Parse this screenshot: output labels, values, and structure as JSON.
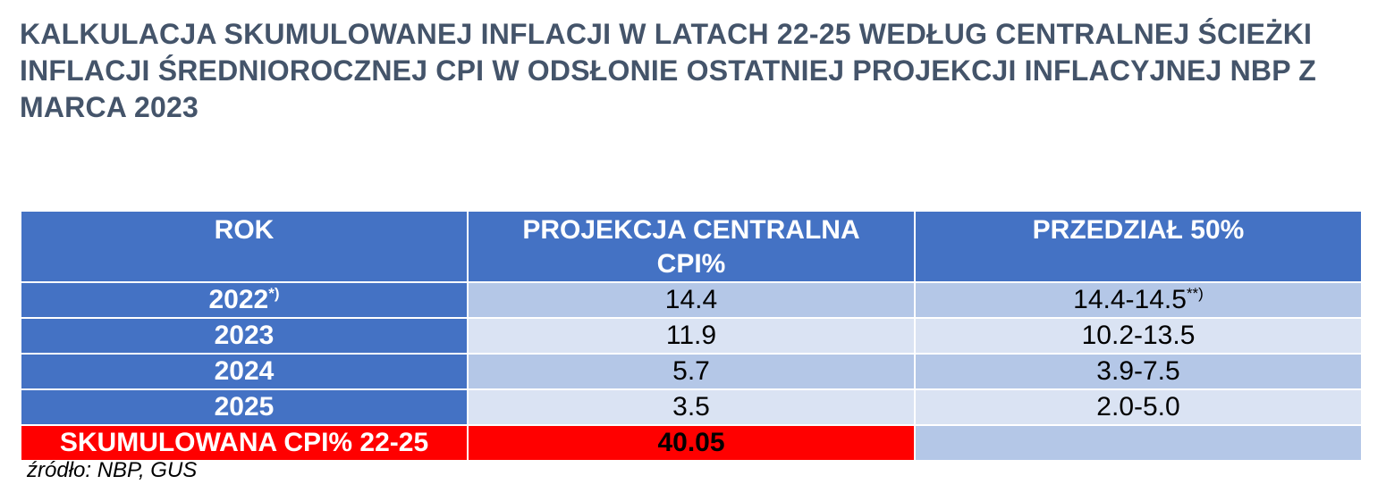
{
  "title": "KALKULACJA SKUMULOWANEJ INFLACJI W LATACH 22-25 WEDŁUG CENTRALNEJ ŚCIEŻKI INFLACJI ŚREDNIOROCZNEJ CPI W ODSŁONIE OSTATNIEJ PROJEKCJI INFLACYJNEJ NBP Z MARCA 2023",
  "table": {
    "headers": {
      "rok": "ROK",
      "central_line1": "PROJEKCJA CENTRALNA",
      "central_line2": "CPI%",
      "range": "PRZEDZIAŁ 50%"
    },
    "rows": [
      {
        "year": "2022",
        "year_note": "*)",
        "central": "14.4",
        "range": "14.4-14.5",
        "range_note": "**)"
      },
      {
        "year": "2023",
        "year_note": "",
        "central": "11.9",
        "range": "10.2-13.5",
        "range_note": ""
      },
      {
        "year": "2024",
        "year_note": "",
        "central": "5.7",
        "range": "3.9-7.5",
        "range_note": ""
      },
      {
        "year": "2025",
        "year_note": "",
        "central": "3.5",
        "range": "2.0-5.0",
        "range_note": ""
      }
    ],
    "total": {
      "label": "SKUMULOWANA CPI% 22-25",
      "value": "40.05"
    }
  },
  "source": "źródło: NBP, GUS",
  "colors": {
    "title": "#44546a",
    "header_bg": "#4472c4",
    "row_odd_bg": "#b4c7e7",
    "row_even_bg": "#dae3f3",
    "total_bg": "#ff0000"
  }
}
